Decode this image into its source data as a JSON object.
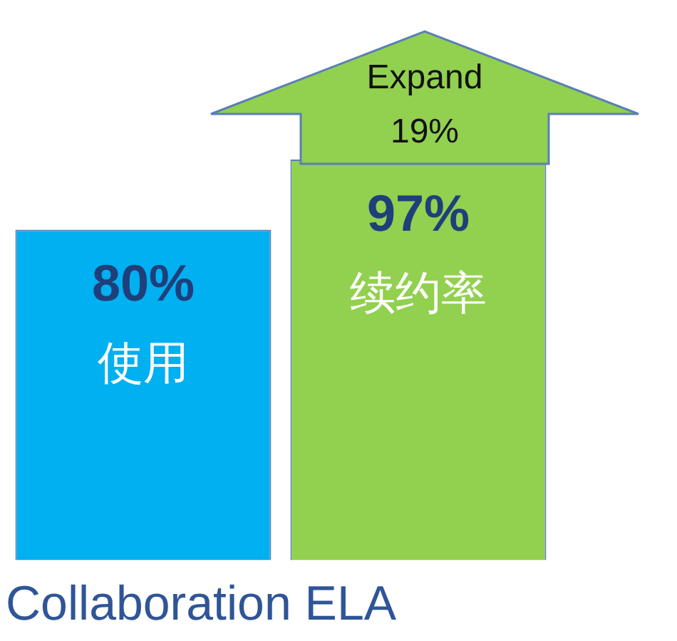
{
  "chart_data": {
    "type": "bar",
    "title": "Collaboration ELA",
    "categories": [
      "使用",
      "续约率"
    ],
    "values": [
      80,
      97
    ],
    "colors": [
      "#00b0f0",
      "#92d050"
    ],
    "value_labels": [
      "80%",
      "97%"
    ],
    "annotations": [
      "Expand 19%"
    ]
  }
}
